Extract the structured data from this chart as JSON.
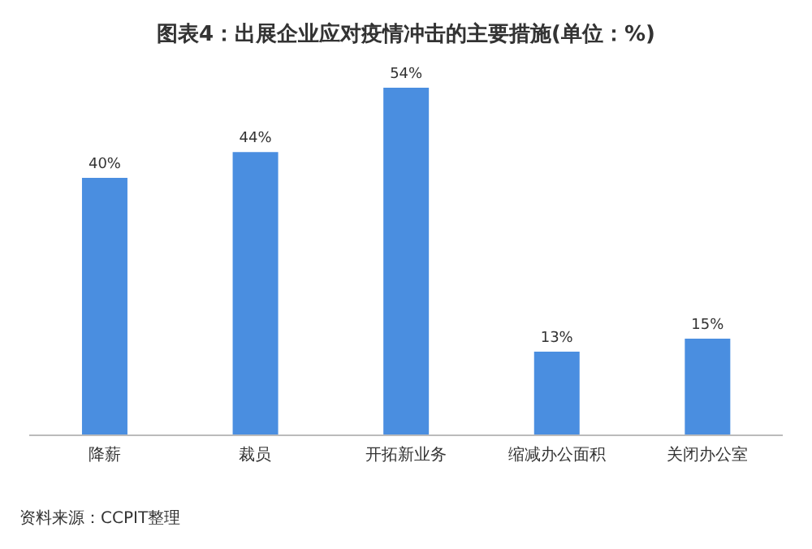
{
  "chart_data": {
    "type": "bar",
    "title": "图表4：出展企业应对疫情冲击的主要措施(单位：%)",
    "categories": [
      "降薪",
      "裁员",
      "开拓新业务",
      "缩减办公面积",
      "关闭办公室"
    ],
    "values": [
      40,
      44,
      54,
      13,
      15
    ],
    "value_labels": [
      "40%",
      "44%",
      "54%",
      "13%",
      "15%"
    ],
    "color": "#4a8ee0",
    "annotations": [
      "资料来源：CCPIT整理"
    ]
  }
}
